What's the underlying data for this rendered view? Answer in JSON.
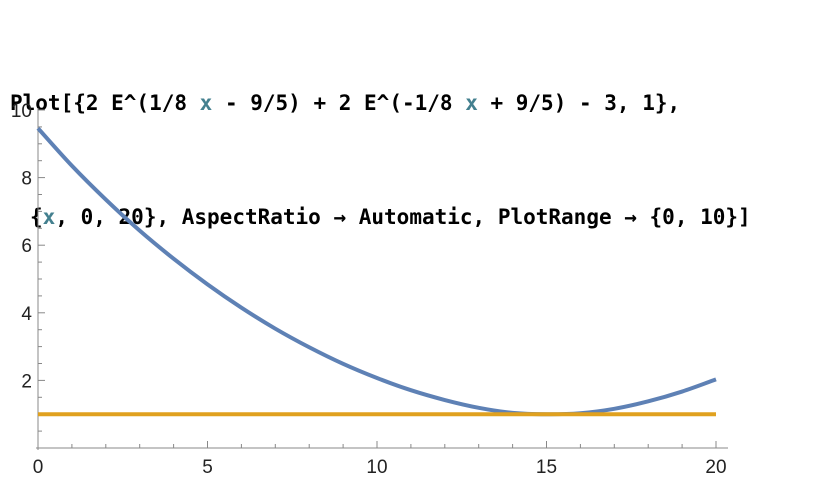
{
  "input": {
    "line1": [
      "Plot[{2 E^(1/8 ",
      "x",
      " - 9/5) + 2 E^(-1/8 ",
      "x",
      " + 9/5) - 3, 1},"
    ],
    "line2": [
      "{",
      "x",
      ", 0, 20}, AspectRatio → Automatic, PlotRange → {0, 10}]"
    ]
  },
  "chart_data": {
    "type": "line",
    "title": "",
    "xlabel": "",
    "ylabel": "",
    "xlim": [
      0,
      20
    ],
    "ylim": [
      0,
      10
    ],
    "xticks": [
      0,
      5,
      10,
      15,
      20
    ],
    "yticks": [
      2,
      4,
      6,
      8,
      10
    ],
    "grid": false,
    "series": [
      {
        "color": "#5e81b5",
        "x": [
          0,
          1,
          2,
          3,
          4,
          5,
          6,
          7,
          8,
          9,
          10,
          11,
          12,
          13,
          14,
          15,
          16,
          17,
          18,
          19,
          20
        ],
        "y": [
          9.46,
          8.35,
          7.35,
          6.43,
          5.6,
          4.84,
          4.15,
          3.53,
          2.98,
          2.49,
          2.07,
          1.71,
          1.42,
          1.19,
          1.04,
          1.0,
          1.03,
          1.16,
          1.38,
          1.67,
          2.03
        ]
      },
      {
        "color": "#e0a11f",
        "x": [
          0,
          20
        ],
        "y": [
          1,
          1
        ]
      }
    ]
  }
}
